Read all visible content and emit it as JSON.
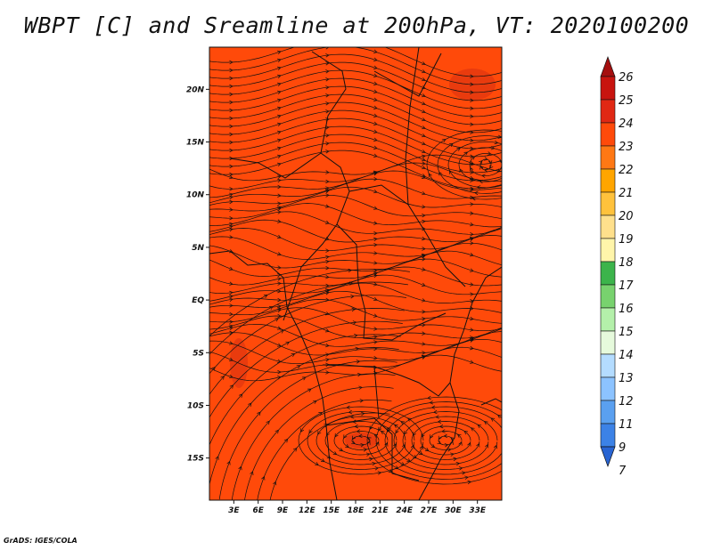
{
  "title": "WBPT [C] and Sreamline at 200hPa, VT: 2020100200",
  "credit": "GrADS: IGES/COLA",
  "map": {
    "field_color": "#ff4a0a",
    "warm_patch_color": "#e5380f",
    "streamline_color": "#111111",
    "lon_range": [
      0,
      36
    ],
    "lat_range": [
      -19,
      24
    ],
    "x_tick_labels": [
      "3E",
      "6E",
      "9E",
      "12E",
      "15E",
      "18E",
      "21E",
      "24E",
      "27E",
      "30E",
      "33E"
    ],
    "y_tick_labels": [
      "20N",
      "15N",
      "10N",
      "5N",
      "EQ",
      "5S",
      "10S",
      "15S"
    ]
  },
  "colorbar": {
    "labels": [
      "26",
      "25",
      "24",
      "23",
      "22",
      "21",
      "20",
      "19",
      "18",
      "17",
      "16",
      "15",
      "14",
      "13",
      "12",
      "11",
      "9",
      "7"
    ],
    "colors": [
      "#a50f0f",
      "#c8140f",
      "#e02814",
      "#ff4a0a",
      "#ff7814",
      "#ffa500",
      "#ffc23c",
      "#ffe08c",
      "#fff5aa",
      "#3cb44b",
      "#78d26e",
      "#b4f0aa",
      "#e6fadc",
      "#b4dcff",
      "#8cc3ff",
      "#5aa0f0",
      "#3c82e6",
      "#2864d2"
    ]
  }
}
